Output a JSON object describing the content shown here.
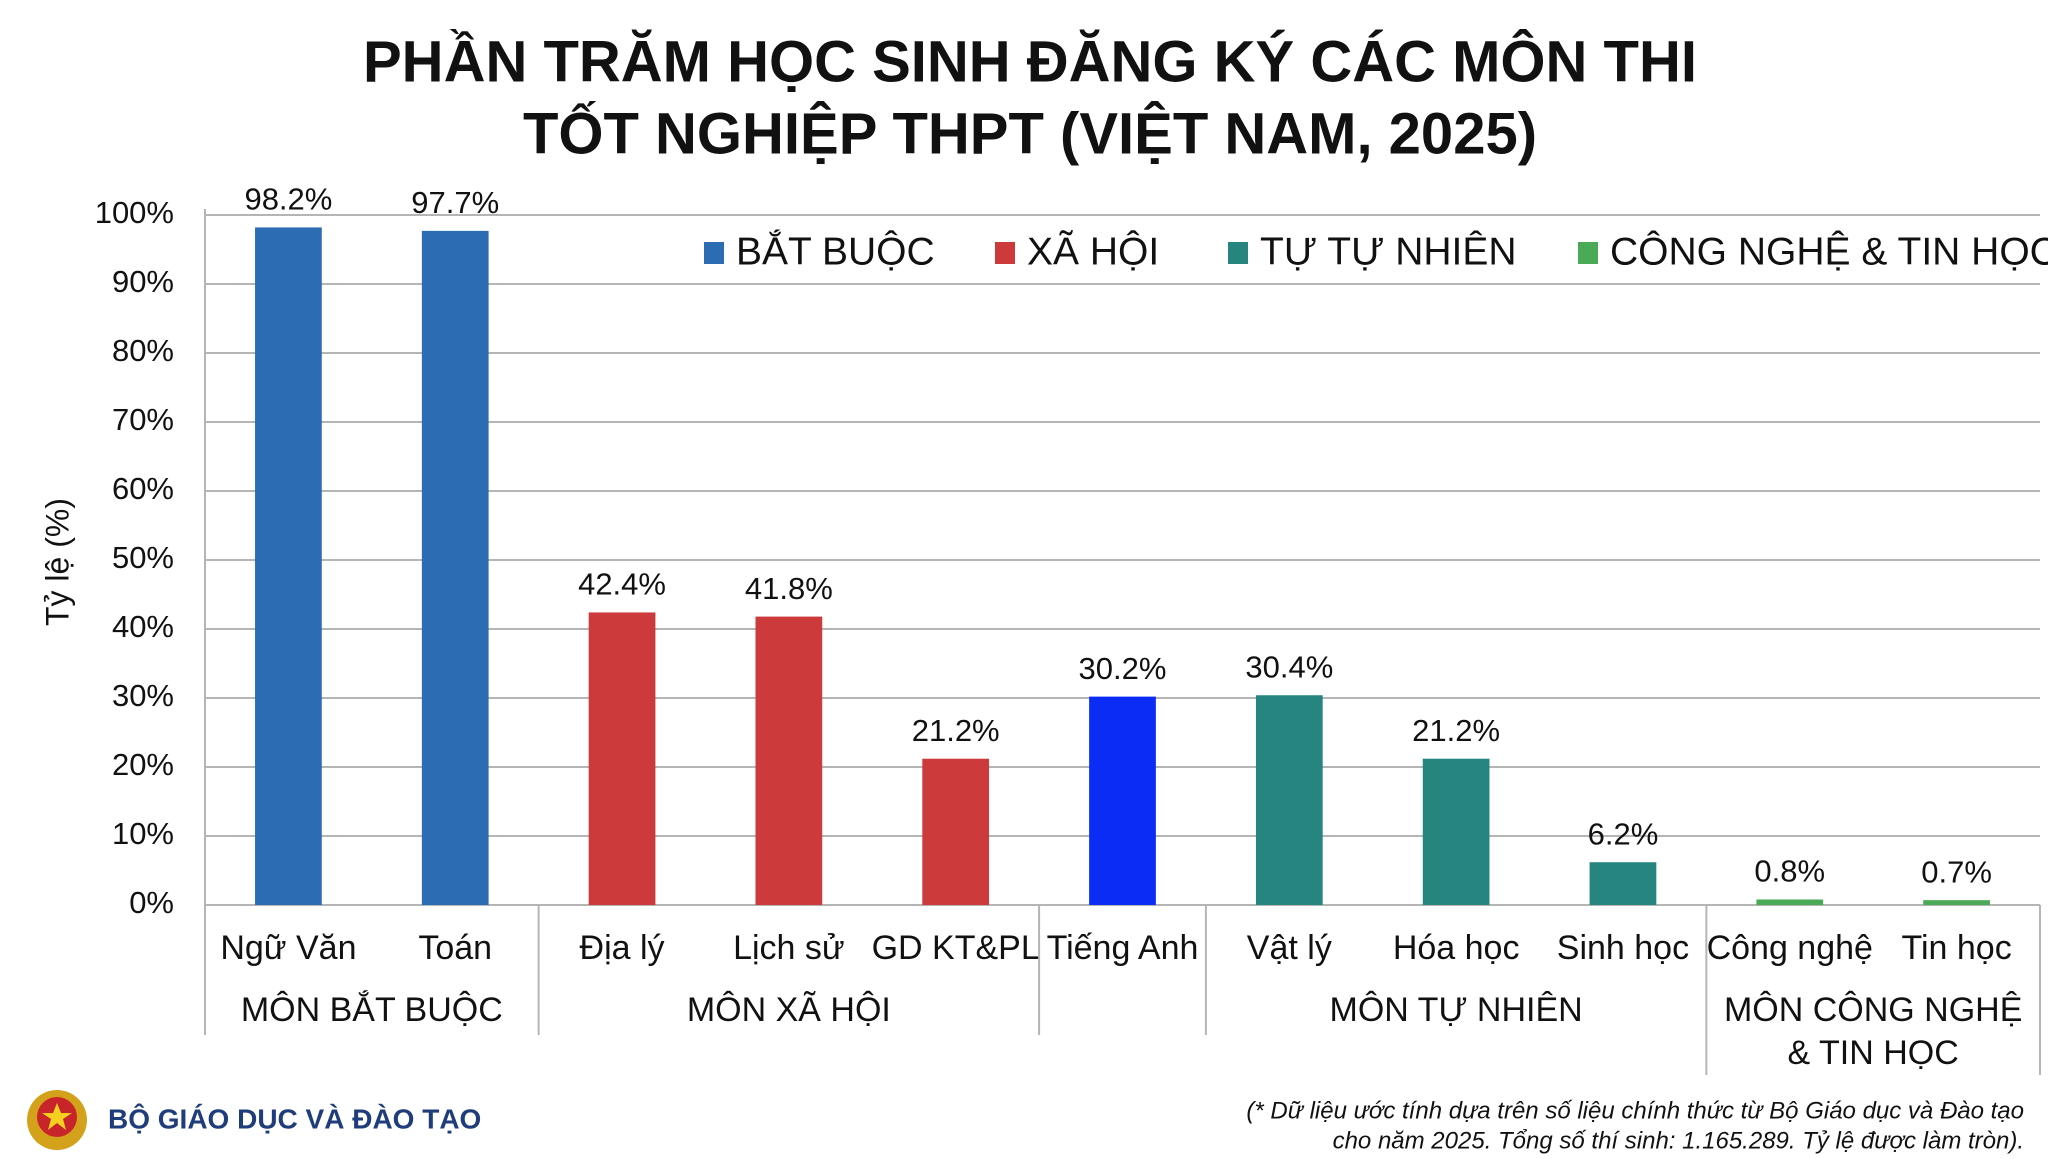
{
  "chart_data": {
    "type": "bar",
    "title": [
      "PHẦN TRĂM HỌC SINH ĐĂNG KÝ CÁC MÔN THI",
      "TỐT NGHIỆP THPT (VIỆT NAM, 2025)"
    ],
    "ylabel": "Tỷ lệ (%)",
    "categories": [
      "Ngữ Văn",
      "Toán",
      "Địa lý",
      "Lịch sử",
      "GD KT&PL",
      "Tiếng Anh",
      "Vật lý",
      "Hóa học",
      "Sinh học",
      "Công nghệ",
      "Tin học"
    ],
    "values": [
      98.2,
      97.7,
      42.4,
      41.8,
      21.2,
      30.2,
      30.4,
      21.2,
      6.2,
      0.8,
      0.7
    ],
    "value_labels": [
      "98.2%",
      "97.7%",
      "42.4%",
      "41.8%",
      "21.2%",
      "30.2%",
      "30.4%",
      "21.2%",
      "6.2%",
      "0.8%",
      "0.7%"
    ],
    "colors": [
      "#2b6cb3",
      "#2b6cb3",
      "#cc3a3c",
      "#cc3a3c",
      "#cc3a3c",
      "#0a2cf5",
      "#278580",
      "#278580",
      "#278580",
      "#4aaa55",
      "#4aaa55"
    ],
    "groups": [
      {
        "label": [
          "MÔN BẮT BUỘC"
        ],
        "count": 2
      },
      {
        "label": [
          "MÔN XÃ HỘI"
        ],
        "count": 3
      },
      {
        "label": null,
        "count": 1
      },
      {
        "label": [
          "MÔN TỰ NHIÊN"
        ],
        "count": 3
      },
      {
        "label": [
          "MÔN CÔNG NGHỆ",
          "& TIN HỌC"
        ],
        "count": 2
      }
    ],
    "legend": [
      {
        "name": "BẮT BUỘC",
        "color": "#2b6cb3"
      },
      {
        "name": "XÃ HỘI",
        "color": "#cc3a3c"
      },
      {
        "name": "TỰ TỰ NHIÊN",
        "color": "#278580"
      },
      {
        "name": "CÔNG NGHỆ & TIN HỌC",
        "color": "#4aaa55"
      }
    ],
    "legend_position": "top-right",
    "ylim": [
      0,
      100
    ],
    "yticks": [
      {
        "value": 0,
        "label": "0%"
      },
      {
        "value": 10,
        "label": "10%"
      },
      {
        "value": 20,
        "label": "20%"
      },
      {
        "value": 30,
        "label": "30%"
      },
      {
        "value": 40,
        "label": "40%"
      },
      {
        "value": 50,
        "label": "50%"
      },
      {
        "value": 60,
        "label": "60%"
      },
      {
        "value": 70,
        "label": "70%"
      },
      {
        "value": 80,
        "label": "80%"
      },
      {
        "value": 90,
        "label": "90%"
      },
      {
        "value": 100,
        "label": "100%"
      }
    ],
    "grid": true,
    "source": "BỘ GIÁO DỤC VÀ ĐÀO TẠO",
    "footnote": [
      "(* Dữ liệu ước tính dựa trên số liệu chính thức từ Bộ Giáo dục và Đào tạo",
      "cho năm 2025. Tổng số thí sinh: 1.165.289. Tỷ lệ được làm tròn)."
    ]
  }
}
